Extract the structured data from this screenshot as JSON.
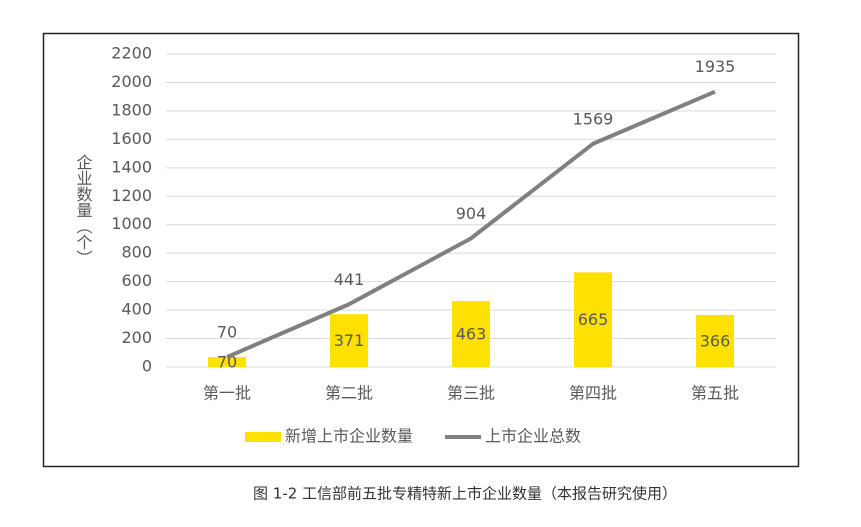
{
  "chart_data": {
    "type": "combo",
    "categories": [
      "第一批",
      "第二批",
      "第三批",
      "第四批",
      "第五批"
    ],
    "y_label": "企业数量（个）",
    "caption": "图 1-2 工信部前五批专精特新上市企业数量（本报告研究使用）",
    "series": [
      {
        "name": "新增上市企业数量",
        "type": "bar",
        "color": "#ffe100",
        "values": [
          70,
          371,
          463,
          665,
          366
        ]
      },
      {
        "name": "上市企业总数",
        "type": "line",
        "color": "#808080",
        "values": [
          70,
          441,
          904,
          1569,
          1935
        ]
      }
    ],
    "ylim": [
      0,
      2200
    ],
    "yticks": [
      0,
      200,
      400,
      600,
      800,
      1000,
      1200,
      1400,
      1600,
      1800,
      2000,
      2200
    ],
    "grid": true,
    "legend": "bottom"
  }
}
